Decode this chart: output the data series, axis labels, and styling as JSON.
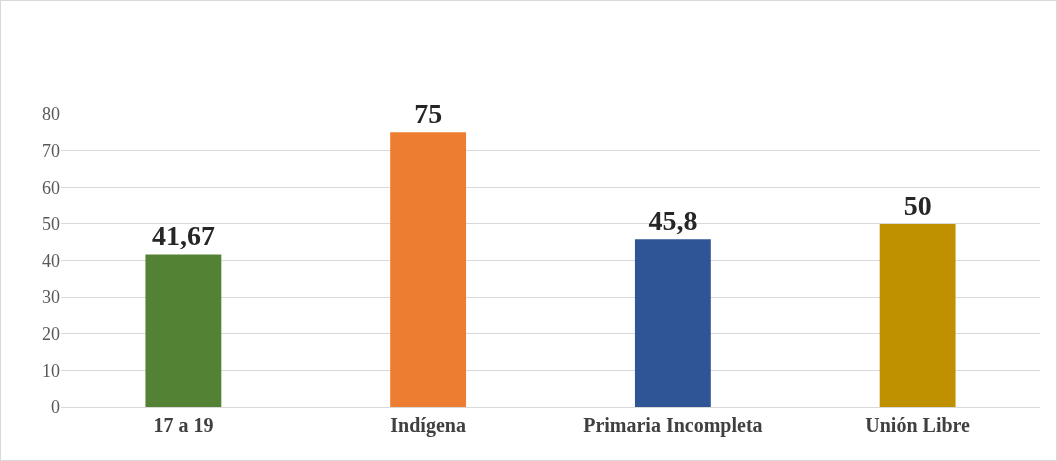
{
  "chart_data": {
    "type": "bar",
    "categories": [
      "17 a 19",
      "Indígena",
      "Primaria Incompleta",
      "Unión Libre"
    ],
    "values": [
      41.67,
      75,
      45.8,
      50
    ],
    "colors": [
      "#548235",
      "#ed7d31",
      "#2f5597",
      "#bf9000"
    ],
    "value_labels": [
      "41,67",
      "75",
      "45,8",
      "50"
    ],
    "ylim": [
      0,
      80
    ],
    "yticks": [
      0,
      10,
      20,
      30,
      40,
      50,
      60,
      70,
      80
    ],
    "grid": "y"
  }
}
